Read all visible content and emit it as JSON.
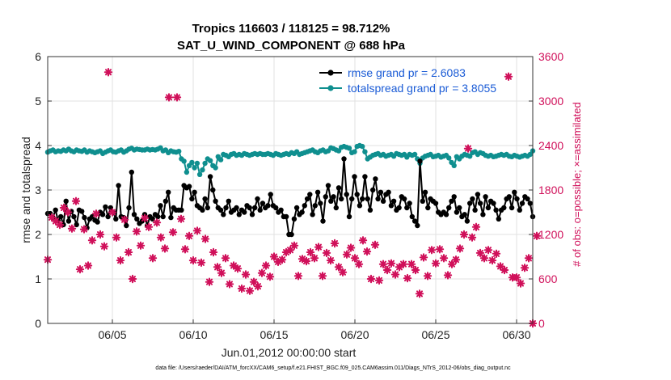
{
  "chart_data": {
    "type": "line",
    "title": "Tropics 116603 / 118125 = 98.712%",
    "subtitle": "SAT_U_WIND_COMPONENT @ 688 hPa",
    "xlabel": "Jun.01,2012 00:00:00 start",
    "ylabel": "rmse and totalspread",
    "y2label": "# of obs: o=possible; ×=assimilated",
    "footnote": "data file: /Users/raeder/DAI/ATM_forcXX/CAM6_setup/f.e21.FHIST_BGC.f09_025.CAM6assim.011/Diags_NTrS_2012-06/obs_diag_output.nc",
    "xlim": [
      1.0,
      31.0
    ],
    "ylim": [
      0,
      6
    ],
    "y2lim": [
      0,
      3600
    ],
    "x_ticks": [
      {
        "v": 5,
        "label": "06/05"
      },
      {
        "v": 10,
        "label": "06/10"
      },
      {
        "v": 15,
        "label": "06/15"
      },
      {
        "v": 20,
        "label": "06/20"
      },
      {
        "v": 25,
        "label": "06/25"
      },
      {
        "v": 30,
        "label": "06/30"
      }
    ],
    "y_ticks": [
      "0",
      "1",
      "2",
      "3",
      "4",
      "5",
      "6"
    ],
    "y2_ticks": [
      "0",
      "600",
      "1200",
      "1800",
      "2400",
      "3000",
      "3600"
    ],
    "grid": true,
    "legend_position": "top-right",
    "colors": {
      "rmse": "#000000",
      "spread": "#0f8f8f",
      "obs": "#d0105a",
      "legend_text": "#1a5bd6",
      "grid": "#e2e2e2"
    },
    "series": [
      {
        "name": "rmse grand pr = 2.6083",
        "values": [
          2.47,
          2.47,
          2.38,
          2.55,
          2.3,
          2.4,
          2.22,
          2.75,
          2.3,
          2.52,
          2.4,
          2.22,
          2.55,
          2.52,
          2.38,
          2.15,
          2.35,
          2.4,
          2.32,
          2.28,
          2.5,
          2.45,
          2.62,
          2.4,
          2.6,
          2.5,
          2.35,
          3.1,
          2.4,
          2.38,
          2.2,
          2.6,
          3.4,
          2.45,
          2.35,
          2.25,
          2.3,
          2.45,
          2.2,
          2.4,
          2.35,
          2.45,
          2.4,
          2.65,
          2.4,
          2.75,
          2.95,
          2.38,
          2.6,
          2.55,
          2.55,
          2.55,
          3.1,
          3.05,
          3.08,
          2.8,
          2.95,
          2.65,
          2.6,
          2.55,
          2.8,
          2.6,
          3.3,
          3.0,
          2.75,
          2.6,
          2.55,
          2.45,
          2.6,
          2.75,
          2.5,
          2.55,
          2.6,
          2.45,
          2.55,
          2.5,
          2.65,
          2.6,
          2.45,
          2.6,
          2.8,
          2.55,
          2.7,
          2.6,
          2.65,
          2.9,
          2.65,
          2.6,
          2.5,
          2.55,
          2.4,
          2.4,
          2.0,
          2.0,
          2.35,
          2.6,
          2.45,
          2.5,
          2.65,
          2.8,
          2.9,
          2.45,
          2.65,
          2.95,
          2.7,
          2.3,
          2.85,
          3.1,
          2.75,
          2.85,
          2.6,
          3.05,
          2.8,
          3.7,
          2.9,
          2.4,
          2.8,
          3.3,
          2.9,
          2.65,
          2.8,
          3.3,
          2.8,
          2.55,
          3.0,
          3.25,
          2.8,
          2.95,
          2.75,
          2.9,
          2.95,
          2.65,
          2.75,
          2.55,
          2.6,
          2.85,
          2.8,
          2.6,
          2.7,
          2.4,
          2.3,
          2.2,
          3.65,
          2.75,
          2.95,
          2.6,
          2.8,
          2.75,
          2.7,
          2.5,
          2.45,
          2.5,
          2.45,
          2.6,
          2.75,
          2.85,
          2.5,
          2.6,
          2.4,
          2.45,
          2.3,
          2.7,
          2.8,
          2.55,
          2.9,
          2.7,
          2.45,
          2.85,
          2.6,
          2.75,
          2.7,
          2.55,
          2.35,
          2.55,
          2.6,
          2.8,
          2.85,
          2.6,
          2.95,
          2.8,
          2.55,
          2.7,
          2.85,
          2.8,
          2.7,
          2.4
        ]
      },
      {
        "name": "totalspread grand pr = 3.8055",
        "values": [
          3.85,
          3.88,
          3.9,
          3.86,
          3.88,
          3.87,
          3.9,
          3.88,
          3.92,
          3.88,
          3.86,
          3.9,
          3.88,
          3.87,
          3.9,
          3.85,
          3.88,
          3.86,
          3.84,
          3.86,
          3.88,
          3.82,
          3.85,
          3.88,
          3.9,
          3.86,
          3.85,
          3.88,
          3.9,
          3.85,
          3.88,
          3.92,
          3.94,
          3.9,
          3.92,
          3.91,
          3.9,
          3.9,
          3.92,
          3.9,
          3.91,
          3.9,
          3.92,
          3.95,
          3.88,
          3.9,
          3.84,
          3.88,
          3.86,
          3.85,
          3.87,
          3.7,
          3.65,
          3.4,
          3.55,
          3.62,
          3.5,
          3.6,
          3.35,
          3.45,
          3.6,
          3.7,
          3.66,
          3.55,
          3.5,
          3.75,
          3.68,
          3.8,
          3.78,
          3.75,
          3.8,
          3.82,
          3.78,
          3.8,
          3.78,
          3.82,
          3.8,
          3.78,
          3.8,
          3.82,
          3.8,
          3.82,
          3.8,
          3.8,
          3.82,
          3.8,
          3.78,
          3.82,
          3.8,
          3.78,
          3.8,
          3.82,
          3.8,
          3.84,
          3.82,
          3.86,
          3.8,
          3.82,
          3.84,
          3.86,
          3.88,
          3.9,
          3.86,
          3.84,
          3.88,
          3.9,
          3.86,
          3.88,
          3.95,
          3.93,
          3.9,
          3.88,
          3.96,
          3.98,
          3.96,
          3.94,
          3.84,
          3.86,
          3.98,
          4.0,
          3.98,
          3.86,
          3.7,
          3.74,
          3.78,
          3.8,
          3.82,
          3.78,
          3.8,
          3.76,
          3.78,
          3.8,
          3.76,
          3.82,
          3.8,
          3.78,
          3.8,
          3.74,
          3.8,
          3.78,
          3.8,
          3.7,
          3.6,
          3.72,
          3.76,
          3.78,
          3.8,
          3.75,
          3.76,
          3.78,
          3.74,
          3.76,
          3.78,
          3.72,
          3.62,
          3.55,
          3.75,
          3.7,
          3.76,
          3.8,
          3.78,
          3.76,
          3.84,
          3.86,
          3.8,
          3.84,
          3.82,
          3.78,
          3.76,
          3.78,
          3.75,
          3.76,
          3.78,
          3.8,
          3.78,
          3.8,
          3.76,
          3.75,
          3.78,
          3.76,
          3.74,
          3.76,
          3.78,
          3.76,
          3.8,
          3.88
        ]
      },
      {
        "name": "observations",
        "points": [
          [
            1.0,
            860
          ],
          [
            1.25,
            1430
          ],
          [
            1.5,
            1380
          ],
          [
            1.75,
            1330
          ],
          [
            2.0,
            1560
          ],
          [
            2.25,
            1500
          ],
          [
            2.5,
            1280
          ],
          [
            2.75,
            1650
          ],
          [
            3.0,
            730
          ],
          [
            3.25,
            1270
          ],
          [
            3.5,
            780
          ],
          [
            3.75,
            1120
          ],
          [
            4.0,
            1480
          ],
          [
            4.25,
            1200
          ],
          [
            4.5,
            1040
          ],
          [
            4.75,
            3390
          ],
          [
            5.0,
            1500
          ],
          [
            5.25,
            1160
          ],
          [
            5.5,
            850
          ],
          [
            5.75,
            1400
          ],
          [
            6.0,
            960
          ],
          [
            6.25,
            600
          ],
          [
            6.5,
            1240
          ],
          [
            6.75,
            1050
          ],
          [
            7.0,
            1420
          ],
          [
            7.25,
            1300
          ],
          [
            7.5,
            880
          ],
          [
            7.75,
            1360
          ],
          [
            8.0,
            1160
          ],
          [
            8.25,
            1010
          ],
          [
            8.5,
            3050
          ],
          [
            8.75,
            1230
          ],
          [
            9.0,
            3050
          ],
          [
            9.25,
            1410
          ],
          [
            9.5,
            1000
          ],
          [
            9.75,
            1180
          ],
          [
            10.0,
            850
          ],
          [
            10.25,
            1250
          ],
          [
            10.5,
            820
          ],
          [
            10.75,
            1140
          ],
          [
            11.0,
            560
          ],
          [
            11.25,
            960
          ],
          [
            11.5,
            760
          ],
          [
            11.75,
            680
          ],
          [
            12.0,
            880
          ],
          [
            12.25,
            530
          ],
          [
            12.5,
            780
          ],
          [
            12.75,
            740
          ],
          [
            13.0,
            470
          ],
          [
            13.25,
            660
          ],
          [
            13.5,
            440
          ],
          [
            13.75,
            560
          ],
          [
            14.0,
            500
          ],
          [
            14.25,
            680
          ],
          [
            14.5,
            780
          ],
          [
            14.75,
            630
          ],
          [
            15.0,
            900
          ],
          [
            15.25,
            830
          ],
          [
            15.5,
            860
          ],
          [
            15.75,
            960
          ],
          [
            16.0,
            990
          ],
          [
            16.25,
            1050
          ],
          [
            16.5,
            640
          ],
          [
            16.75,
            870
          ],
          [
            17.0,
            840
          ],
          [
            17.25,
            960
          ],
          [
            17.5,
            880
          ],
          [
            17.75,
            1030
          ],
          [
            18.0,
            640
          ],
          [
            18.25,
            950
          ],
          [
            18.5,
            850
          ],
          [
            18.75,
            1080
          ],
          [
            19.0,
            760
          ],
          [
            19.25,
            690
          ],
          [
            19.5,
            930
          ],
          [
            19.75,
            1020
          ],
          [
            20.0,
            880
          ],
          [
            20.25,
            800
          ],
          [
            20.5,
            1120
          ],
          [
            20.75,
            970
          ],
          [
            21.0,
            600
          ],
          [
            21.25,
            1060
          ],
          [
            21.5,
            580
          ],
          [
            21.75,
            800
          ],
          [
            22.0,
            720
          ],
          [
            22.25,
            810
          ],
          [
            22.5,
            660
          ],
          [
            22.75,
            760
          ],
          [
            23.0,
            800
          ],
          [
            23.25,
            610
          ],
          [
            23.5,
            800
          ],
          [
            23.75,
            720
          ],
          [
            24.0,
            400
          ],
          [
            24.25,
            890
          ],
          [
            24.5,
            640
          ],
          [
            24.75,
            990
          ],
          [
            25.0,
            810
          ],
          [
            25.25,
            1000
          ],
          [
            25.5,
            880
          ],
          [
            25.75,
            650
          ],
          [
            26.0,
            800
          ],
          [
            26.25,
            860
          ],
          [
            26.5,
            1010
          ],
          [
            26.75,
            1200
          ],
          [
            27.0,
            2360
          ],
          [
            27.25,
            1160
          ],
          [
            27.5,
            1300
          ],
          [
            27.75,
            950
          ],
          [
            28.0,
            880
          ],
          [
            28.25,
            990
          ],
          [
            28.5,
            850
          ],
          [
            28.75,
            940
          ],
          [
            29.0,
            770
          ],
          [
            29.25,
            720
          ],
          [
            29.5,
            3330
          ],
          [
            29.75,
            620
          ],
          [
            30.0,
            620
          ],
          [
            30.25,
            540
          ],
          [
            30.5,
            750
          ],
          [
            30.75,
            880
          ],
          [
            31.0,
            0
          ],
          [
            31.25,
            1180
          ]
        ]
      }
    ]
  }
}
